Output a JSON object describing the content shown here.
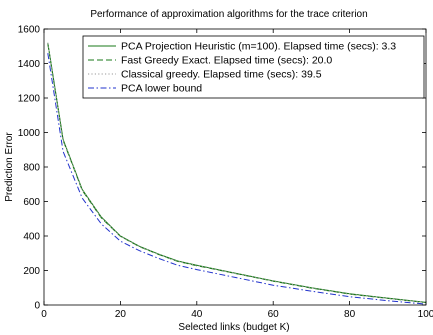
{
  "chart_data": {
    "type": "line",
    "title": "Performance of approximation algorithms for the trace criterion",
    "xlabel": "Selected links (budget K)",
    "ylabel": "Prediction Error",
    "xlim": [
      0,
      100
    ],
    "ylim": [
      0,
      1600
    ],
    "xticks": [
      0,
      20,
      40,
      60,
      80,
      100
    ],
    "yticks": [
      0,
      200,
      400,
      600,
      800,
      1000,
      1200,
      1400,
      1600
    ],
    "grid": false,
    "legend_position": "top-right",
    "series": [
      {
        "name": "PCA Projection Heuristic (m=100). Elapsed time (secs): 3.3",
        "color": "#1a7a1a",
        "dash": "solid",
        "x": [
          1,
          5,
          10,
          15,
          20,
          25,
          30,
          35,
          40,
          50,
          60,
          70,
          80,
          90,
          100
        ],
        "y": [
          1520,
          960,
          670,
          510,
          400,
          340,
          295,
          255,
          230,
          185,
          140,
          100,
          65,
          40,
          15
        ]
      },
      {
        "name": "Fast Greedy Exact. Elapsed time (secs): 20.0",
        "color": "#1a7a1a",
        "dash": "dashed",
        "x": [
          1,
          5,
          10,
          15,
          20,
          25,
          30,
          35,
          40,
          50,
          60,
          70,
          80,
          90,
          100
        ],
        "y": [
          1515,
          955,
          665,
          505,
          398,
          338,
          293,
          253,
          228,
          183,
          138,
          98,
          63,
          38,
          14
        ]
      },
      {
        "name": "Classical greedy. Elapsed time (secs): 39.5",
        "color": "#999999",
        "dash": "dotted",
        "x": [
          1,
          5,
          10,
          15,
          20,
          25,
          30,
          35,
          40,
          50,
          60,
          70,
          80,
          90,
          100
        ],
        "y": [
          1518,
          958,
          668,
          508,
          399,
          339,
          294,
          254,
          229,
          184,
          139,
          99,
          64,
          39,
          14
        ]
      },
      {
        "name": "PCA lower bound",
        "color": "#2233cc",
        "dash": "dashdot",
        "x": [
          1,
          5,
          10,
          15,
          20,
          25,
          30,
          35,
          40,
          50,
          60,
          70,
          80,
          90,
          100
        ],
        "y": [
          1460,
          890,
          620,
          470,
          370,
          315,
          270,
          230,
          205,
          160,
          115,
          80,
          48,
          25,
          5
        ]
      }
    ]
  }
}
